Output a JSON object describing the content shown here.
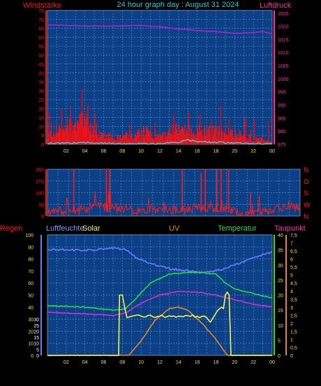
{
  "title": "24 hour graph day : August 31 2024",
  "colors": {
    "background": "#000000",
    "plot": "#0b3f86",
    "grid": "#5d86c4",
    "wind": "#ff1010",
    "gust": "#ff0000",
    "wind_avg": "#3fd0e0",
    "pressure": "#b020d0",
    "direction": "#ff1a1a",
    "humidity": "#6f78ff",
    "solar": "#f4f44a",
    "uv": "#e08a20",
    "temperature": "#20dd40",
    "dewpoint": "#d030d0",
    "axis_red": "#ff1010",
    "axis_pink": "#ff2ab0",
    "axis_yellow": "#f0e020",
    "axis_white": "#ffffff"
  },
  "x_tick_labels": [
    "02",
    "04",
    "06",
    "08",
    "10",
    "12",
    "14",
    "16",
    "18",
    "20",
    "22",
    "00"
  ],
  "chart_data": [
    {
      "type": "line",
      "name": "wind-pressure",
      "left_label": "Windstärke",
      "right_label": "Luftdruck",
      "left_ticks": [
        "0",
        "5",
        "10",
        "15",
        "20",
        "25",
        "30",
        "35",
        "40",
        "45",
        "50",
        "55",
        "60",
        "65",
        "70",
        "75"
      ],
      "right_ticks": [
        "975",
        "980",
        "985",
        "990",
        "995",
        "1000",
        "1005",
        "1010",
        "1015",
        "1020",
        "1025"
      ],
      "ylim_left": [
        0,
        75
      ],
      "ylim_right": [
        975,
        1026
      ],
      "xlim_hours": [
        0,
        24
      ],
      "series": [
        {
          "role": "pressure",
          "axis": "right",
          "x": [
            0,
            2,
            4,
            6,
            8,
            10,
            12,
            14,
            16,
            18,
            20,
            22,
            23,
            24
          ],
          "y": [
            1020.5,
            1020.3,
            1020.1,
            1020.0,
            1020.1,
            1020.3,
            1019.8,
            1019.0,
            1018.3,
            1017.9,
            1017.3,
            1017.6,
            1017.9,
            1017.2
          ]
        },
        {
          "role": "wind",
          "axis": "left",
          "x": [
            0,
            1,
            2,
            3,
            4,
            5,
            6,
            7,
            8,
            9,
            10,
            11,
            12,
            13,
            14,
            15,
            16,
            17,
            18,
            19,
            20,
            21,
            22,
            23,
            24
          ],
          "y": [
            7,
            8,
            10,
            11,
            12,
            9,
            5,
            4,
            4,
            5,
            6,
            7,
            4,
            7,
            8,
            7,
            7,
            7,
            7,
            6,
            6,
            5,
            3,
            3,
            1
          ]
        },
        {
          "role": "gust",
          "axis": "left",
          "x": [
            0.2,
            1.5,
            2.5,
            3.7,
            4.3,
            5.1,
            8.8,
            11.5,
            13.5,
            15.1,
            16.3,
            17.5,
            18.5,
            19.4,
            21.2,
            22.1,
            23.6
          ],
          "y": [
            18,
            20,
            16,
            31,
            22,
            17,
            11,
            12,
            16,
            18,
            17,
            14,
            22,
            14,
            14,
            14,
            13
          ]
        },
        {
          "role": "wind_avg",
          "axis": "left",
          "x": [
            0,
            2,
            4,
            6,
            8,
            10,
            12,
            14,
            15,
            16,
            18,
            20,
            22,
            24
          ],
          "y": [
            0.4,
            0.6,
            1.0,
            0.4,
            0.2,
            0.2,
            0.3,
            1.2,
            2.5,
            1.4,
            1.0,
            0.7,
            0.4,
            0.3
          ]
        }
      ]
    },
    {
      "type": "line",
      "name": "wind-direction",
      "left_ticks": [
        "0",
        "90",
        "180",
        "270",
        "360"
      ],
      "right_ticks": [
        "N",
        "W",
        "S",
        "O",
        "N"
      ],
      "ylim": [
        0,
        360
      ],
      "xlim_hours": [
        0,
        24
      ],
      "series": [
        {
          "role": "direction",
          "x": [
            0,
            1,
            2,
            3,
            4,
            5,
            6,
            7,
            8,
            9,
            10,
            11,
            12,
            13,
            14,
            15,
            16,
            17,
            18,
            19,
            20,
            21,
            22,
            23,
            24
          ],
          "y": [
            30,
            40,
            35,
            50,
            60,
            80,
            60,
            45,
            40,
            40,
            45,
            50,
            45,
            50,
            55,
            60,
            55,
            45,
            35,
            25,
            25,
            35,
            60,
            70,
            60
          ]
        },
        {
          "role": "direction_spikes",
          "x": [
            2.5,
            5.6,
            5.9,
            12.8,
            14.6,
            15.0,
            16.1,
            16.5,
            17.2,
            19.3
          ],
          "y": [
            360,
            360,
            360,
            360,
            330,
            360,
            360,
            360,
            360,
            180
          ]
        }
      ]
    },
    {
      "type": "line",
      "name": "humidity-solar-uv-temperature",
      "labels": {
        "regen": "Regen",
        "humidity": "Luftfeuchte",
        "solar": "Solar",
        "uv": "UV",
        "temperature": "Temperatur",
        "dewpoint": "Taupunkt"
      },
      "humidity_ticks": [
        "0",
        "10",
        "20",
        "30",
        "40",
        "50",
        "60",
        "70",
        "80",
        "90",
        "100"
      ],
      "regen_ticks": [
        "0",
        "5",
        "10",
        "15",
        "20",
        "25",
        "30"
      ],
      "temperature_ticks": [
        "0",
        "5",
        "10",
        "15",
        "20",
        "25",
        "30",
        "35",
        "40"
      ],
      "uv_ticks": [
        "0",
        "0,5",
        "1",
        "1,5",
        "2",
        "2,5",
        "3",
        "3,5",
        "4",
        "4,5",
        "5",
        "5,5",
        "6",
        "6,5",
        "7",
        "7,5"
      ],
      "ylim_humidity": [
        0,
        100
      ],
      "ylim_temperature": [
        0,
        40
      ],
      "ylim_uv": [
        0,
        7.5
      ],
      "xlim_hours": [
        0,
        24
      ],
      "series": [
        {
          "role": "humidity",
          "x": [
            0,
            4,
            7,
            8.3,
            9.5,
            11,
            13,
            15,
            17,
            18,
            20,
            22,
            24
          ],
          "y": [
            88,
            87,
            89,
            88,
            81,
            76,
            72,
            70,
            69,
            70,
            75,
            81,
            86
          ]
        },
        {
          "role": "temperature",
          "x": [
            0,
            4,
            7,
            8.3,
            9.5,
            11,
            13,
            15,
            16,
            18,
            19,
            20,
            22,
            24
          ],
          "y": [
            16.5,
            16,
            15,
            15.3,
            19,
            24,
            27,
            27.5,
            27.5,
            27,
            24,
            22,
            20.5,
            19
          ]
        },
        {
          "role": "dewpoint",
          "x": [
            0,
            4,
            7,
            8.3,
            10,
            12,
            14,
            16,
            18,
            20,
            22,
            24
          ],
          "y": [
            14.3,
            13.8,
            13.2,
            14,
            17.3,
            20,
            21.3,
            21,
            20,
            18.5,
            17,
            16
          ]
        },
        {
          "role": "solar",
          "x": [
            0,
            7.6,
            7.7,
            8.0,
            8.3,
            8.5,
            9.0,
            10.0,
            12.0,
            14.0,
            16.0,
            17.0,
            17.4,
            17.8,
            18.2,
            18.6,
            18.8,
            19.0,
            19.2,
            19.4,
            19.6,
            24
          ],
          "y": [
            0,
            0,
            20,
            20,
            15,
            12.5,
            13,
            13,
            13,
            13,
            13,
            12.5,
            11,
            13,
            15,
            16,
            15.5,
            20,
            21,
            20,
            0,
            0
          ]
        },
        {
          "role": "uv",
          "x": [
            0,
            8.7,
            10,
            11.5,
            13,
            14,
            15,
            16.5,
            18,
            19.2,
            24
          ],
          "y": [
            0,
            0,
            0.9,
            2.2,
            2.9,
            3.0,
            2.8,
            2.0,
            1.0,
            0,
            0
          ]
        }
      ]
    }
  ]
}
